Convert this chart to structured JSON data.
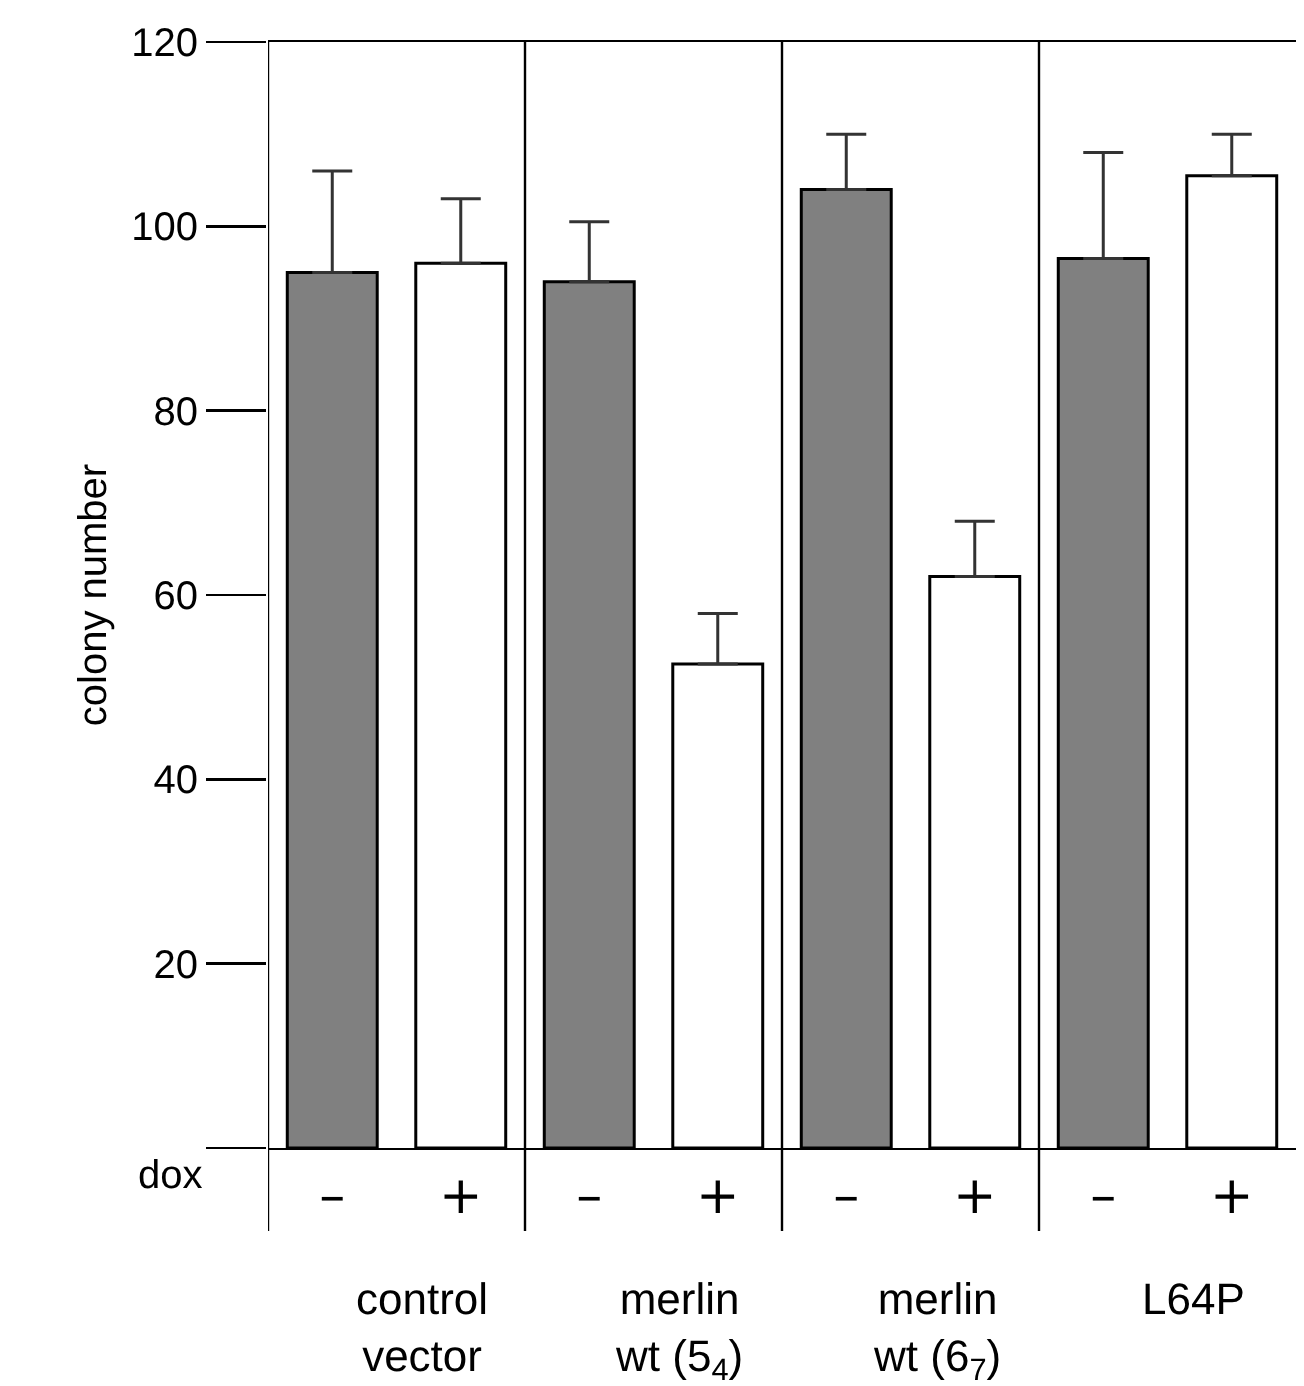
{
  "chart_data": {
    "type": "bar",
    "categories": [
      "–",
      "+",
      "–",
      "+",
      "–",
      "+",
      "–",
      "+"
    ],
    "values": [
      95,
      96,
      94,
      52.5,
      104,
      62,
      96.5,
      105.5
    ],
    "errors": [
      [
        95,
        106
      ],
      [
        96,
        103
      ],
      [
        94,
        100.5
      ],
      [
        52.5,
        58
      ],
      [
        104,
        110
      ],
      [
        62,
        68
      ],
      [
        96.5,
        108
      ],
      [
        105.5,
        110
      ]
    ],
    "colors": [
      "#808080",
      "#ffffff",
      "#808080",
      "#ffffff",
      "#808080",
      "#ffffff",
      "#808080",
      "#ffffff"
    ],
    "ylabel": "colony number",
    "xlabel": "dox",
    "annotations": [
      "control\nvector",
      "merlin\nwt (5$_{4}$)",
      "merlin\nwt (6$_{7}$)",
      "L64P"
    ],
    "ylim": [
      0,
      120
    ],
    "yticks": [
      {
        "value": 0,
        "label": null
      },
      20,
      40,
      60,
      80,
      100,
      120
    ]
  }
}
